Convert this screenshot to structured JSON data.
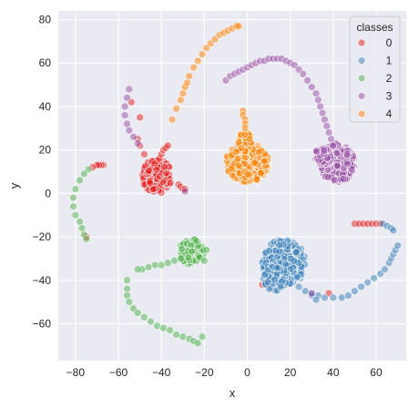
{
  "chart_data": {
    "type": "scatter",
    "xlabel": "x",
    "ylabel": "y",
    "xlim": [
      -88,
      74
    ],
    "ylim": [
      -77,
      84
    ],
    "xticks": [
      -80,
      -60,
      -40,
      -20,
      0,
      20,
      40,
      60
    ],
    "yticks": [
      -60,
      -40,
      -20,
      0,
      20,
      40,
      60,
      80
    ],
    "grid": true,
    "background": "#eaeaf2",
    "legend": {
      "title": "classes",
      "placement": "top-right",
      "entries": [
        "0",
        "1",
        "2",
        "3",
        "4"
      ]
    },
    "series": [
      {
        "name": "0",
        "color": "#e41a1c",
        "clusters": [
          {
            "cx": -42,
            "cy": 8,
            "rx": 7,
            "ry": 8,
            "n": 110
          }
        ],
        "points": [
          [
            -41,
            16
          ],
          [
            -40,
            18
          ],
          [
            -39,
            20
          ],
          [
            -38,
            21
          ],
          [
            -37,
            22
          ],
          [
            -48,
            18
          ],
          [
            -50,
            22
          ],
          [
            -51,
            25
          ],
          [
            -32,
            4
          ],
          [
            -31,
            3
          ],
          [
            -30,
            2
          ],
          [
            -29,
            2
          ],
          [
            -67,
            13
          ],
          [
            -68,
            13
          ],
          [
            -69,
            13
          ],
          [
            -70,
            13
          ],
          [
            -72,
            12
          ],
          [
            -50,
            35
          ],
          [
            -54,
            42
          ],
          [
            -75,
            -20
          ],
          [
            50,
            -14
          ],
          [
            52,
            -14
          ],
          [
            54,
            -14
          ],
          [
            56,
            -14
          ],
          [
            58,
            -14
          ],
          [
            60,
            -14
          ],
          [
            62,
            -14
          ],
          [
            10,
            -42
          ],
          [
            7,
            -42
          ],
          [
            38,
            -46
          ]
        ]
      },
      {
        "name": "1",
        "color": "#377eb8",
        "clusters": [
          {
            "cx": 17,
            "cy": -32,
            "rx": 10,
            "ry": 11,
            "n": 260
          },
          {
            "cx": 13,
            "cy": -39,
            "rx": 6,
            "ry": 6,
            "n": 60
          }
        ],
        "points": [
          [
            24,
            -43
          ],
          [
            27,
            -45
          ],
          [
            30,
            -46
          ],
          [
            33,
            -47
          ],
          [
            36,
            -48
          ],
          [
            40,
            -48
          ],
          [
            44,
            -48
          ],
          [
            47,
            -47
          ],
          [
            50,
            -45
          ],
          [
            53,
            -43
          ],
          [
            56,
            -41
          ],
          [
            59,
            -39
          ],
          [
            62,
            -37
          ],
          [
            64,
            -35
          ],
          [
            66,
            -32
          ],
          [
            67,
            -30
          ],
          [
            68,
            -28
          ],
          [
            69,
            -26
          ],
          [
            70,
            -24
          ],
          [
            63,
            -14
          ],
          [
            65,
            -15
          ],
          [
            67,
            -16
          ],
          [
            68,
            -17
          ],
          [
            30,
            -47
          ],
          [
            32,
            -49
          ]
        ]
      },
      {
        "name": "2",
        "color": "#4daf4a",
        "clusters": [
          {
            "cx": -26,
            "cy": -27,
            "rx": 6,
            "ry": 6,
            "n": 90
          }
        ],
        "points": [
          [
            -31,
            -30
          ],
          [
            -34,
            -31
          ],
          [
            -37,
            -32
          ],
          [
            -40,
            -33
          ],
          [
            -43,
            -33
          ],
          [
            -46,
            -34
          ],
          [
            -49,
            -35
          ],
          [
            -51,
            -35
          ],
          [
            -56,
            -40
          ],
          [
            -56,
            -44
          ],
          [
            -56,
            -47
          ],
          [
            -55,
            -50
          ],
          [
            -53,
            -53
          ],
          [
            -51,
            -55
          ],
          [
            -48,
            -57
          ],
          [
            -45,
            -59
          ],
          [
            -42,
            -61
          ],
          [
            -39,
            -62
          ],
          [
            -36,
            -63
          ],
          [
            -33,
            -65
          ],
          [
            -30,
            -66
          ],
          [
            -27,
            -67
          ],
          [
            -25,
            -68
          ],
          [
            -23,
            -69
          ],
          [
            -21,
            -66
          ],
          [
            -20,
            -31
          ],
          [
            -19,
            -26
          ],
          [
            -74,
            11
          ],
          [
            -76,
            9
          ],
          [
            -78,
            6
          ],
          [
            -80,
            2
          ],
          [
            -81,
            -2
          ],
          [
            -81,
            -6
          ],
          [
            -80,
            -10
          ],
          [
            -78,
            -13
          ],
          [
            -77,
            -16
          ],
          [
            -76,
            -19
          ],
          [
            -75,
            -21
          ]
        ]
      },
      {
        "name": "3",
        "color": "#984ea3",
        "clusters": [
          {
            "cx": 42,
            "cy": 14,
            "rx": 8,
            "ry": 9,
            "n": 200
          },
          {
            "cx": 35,
            "cy": 17,
            "rx": 4,
            "ry": 4,
            "n": 40
          }
        ],
        "points": [
          [
            -10,
            52
          ],
          [
            -8,
            54
          ],
          [
            -6,
            55
          ],
          [
            -4,
            56
          ],
          [
            -2,
            57
          ],
          [
            0,
            58
          ],
          [
            2,
            59
          ],
          [
            4,
            60
          ],
          [
            6,
            61
          ],
          [
            8,
            61
          ],
          [
            10,
            62
          ],
          [
            12,
            62
          ],
          [
            14,
            62
          ],
          [
            16,
            62
          ],
          [
            18,
            61
          ],
          [
            20,
            60
          ],
          [
            22,
            59
          ],
          [
            24,
            57
          ],
          [
            26,
            55
          ],
          [
            28,
            52
          ],
          [
            30,
            49
          ],
          [
            32,
            46
          ],
          [
            33,
            43
          ],
          [
            34,
            40
          ],
          [
            35,
            37
          ],
          [
            36,
            34
          ],
          [
            37,
            31
          ],
          [
            38,
            28
          ],
          [
            39,
            25
          ],
          [
            40,
            22
          ],
          [
            -55,
            48
          ],
          [
            -56,
            44
          ],
          [
            -57,
            40
          ],
          [
            -57,
            36
          ],
          [
            -56,
            32
          ],
          [
            -55,
            29
          ],
          [
            -53,
            26
          ],
          [
            -51,
            23
          ],
          [
            -29,
            1
          ],
          [
            30,
            -46
          ]
        ]
      },
      {
        "name": "4",
        "color": "#ff7f00",
        "clusters": [
          {
            "cx": 0,
            "cy": 14,
            "rx": 10,
            "ry": 9,
            "n": 240
          },
          {
            "cx": -1,
            "cy": 24,
            "rx": 3,
            "ry": 5,
            "n": 40
          }
        ],
        "points": [
          [
            -2,
            38
          ],
          [
            -2,
            36
          ],
          [
            -1,
            34
          ],
          [
            -1,
            32
          ],
          [
            -1,
            30
          ],
          [
            -35,
            34
          ],
          [
            -33,
            39
          ],
          [
            -31,
            43
          ],
          [
            -30,
            46
          ],
          [
            -29,
            49
          ],
          [
            -28,
            51
          ],
          [
            -27,
            54
          ],
          [
            -25,
            58
          ],
          [
            -23,
            61
          ],
          [
            -21,
            64
          ],
          [
            -19,
            67
          ],
          [
            -17,
            69
          ],
          [
            -15,
            71
          ],
          [
            -13,
            73
          ],
          [
            -11,
            74
          ],
          [
            -9,
            75
          ],
          [
            -7,
            76
          ],
          [
            -5,
            77
          ],
          [
            -4,
            77
          ]
        ]
      }
    ]
  }
}
